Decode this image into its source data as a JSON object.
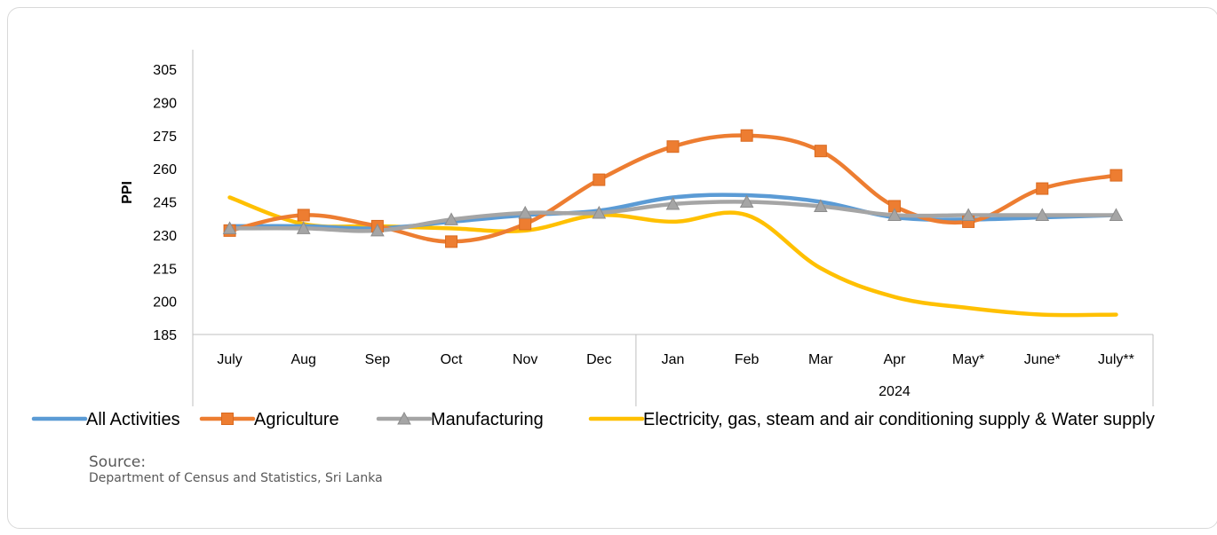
{
  "chart_data": {
    "type": "line",
    "ylabel": "PPI",
    "ylim": [
      185,
      305
    ],
    "yticks": [
      185,
      200,
      215,
      230,
      245,
      260,
      275,
      290,
      305
    ],
    "categories": [
      "July",
      "Aug",
      "Sep",
      "Oct",
      "Nov",
      "Dec",
      "Jan",
      "Feb",
      "Mar",
      "Apr",
      "May*",
      "June*",
      "July**"
    ],
    "group_labels": [
      "2024"
    ],
    "series": [
      {
        "name": "All Activities",
        "color": "#5B9BD5",
        "marker": "none",
        "values": [
          234,
          234,
          233,
          236,
          239,
          241,
          247,
          248,
          245,
          238,
          237,
          238,
          239
        ]
      },
      {
        "name": "Agriculture",
        "color": "#ED7D31",
        "marker": "square",
        "values": [
          232,
          239,
          234,
          227,
          235,
          255,
          270,
          275,
          268,
          243,
          236,
          251,
          257
        ]
      },
      {
        "name": "Manufacturing",
        "color": "#A5A5A5",
        "marker": "triangle",
        "values": [
          233,
          233,
          232,
          237,
          240,
          240,
          244,
          245,
          243,
          239,
          239,
          239,
          239
        ]
      },
      {
        "name": "Electricity, gas, steam and air conditioning supply & Water supply",
        "color": "#FFC000",
        "marker": "none",
        "values": [
          247,
          235,
          234,
          233,
          232,
          239,
          236,
          239,
          215,
          202,
          197,
          194,
          194
        ]
      }
    ],
    "grid": false,
    "legend_position": "bottom"
  },
  "source": {
    "label": "Source:",
    "text": "Department of Census and Statistics, Sri Lanka"
  }
}
